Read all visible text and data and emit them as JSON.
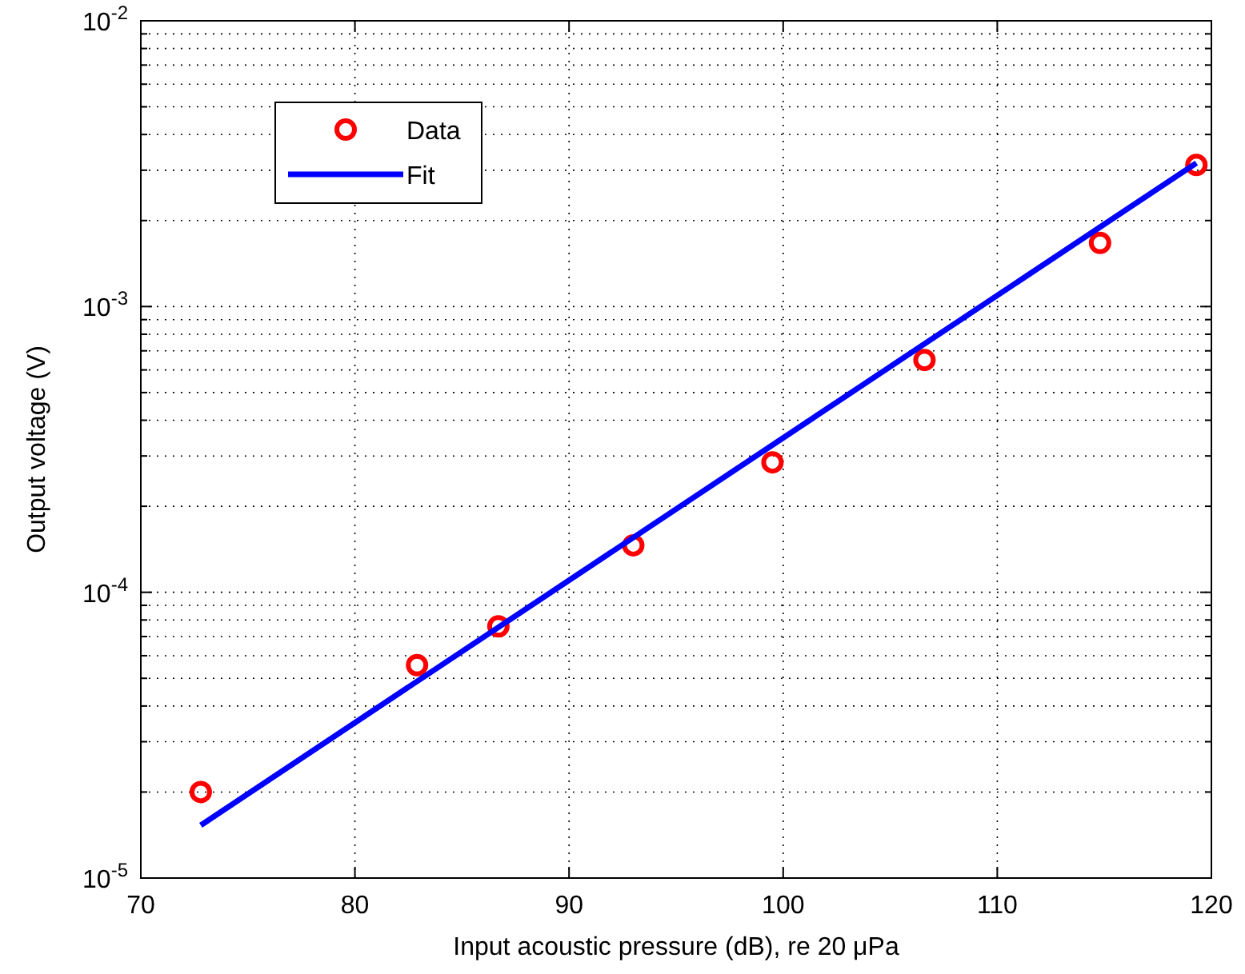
{
  "chart_data": {
    "type": "scatter",
    "xlabel": "Input acoustic pressure (dB), re 20 μPa",
    "ylabel": "Output voltage (V)",
    "xlim": [
      70,
      120
    ],
    "xticks": [
      70,
      80,
      90,
      100,
      110,
      120
    ],
    "ylim": [
      1e-05,
      0.01
    ],
    "yticks": [
      {
        "value": 1e-05,
        "label": "10$^{-5}$"
      },
      {
        "value": 0.0001,
        "label": "10$^{-4}$"
      },
      {
        "value": 0.001,
        "label": "10$^{-3}$"
      },
      {
        "value": 0.01,
        "label": "10$^{-2}$"
      }
    ],
    "log": "y",
    "grid": true,
    "legend": "top left",
    "series": [
      {
        "name": "Data",
        "marker": "circle",
        "color": "#ff0000",
        "x": [
          72.8,
          82.9,
          86.7,
          93.0,
          99.5,
          106.6,
          114.8,
          119.3
        ],
        "values": [
          2e-05,
          5.56e-05,
          7.6e-05,
          0.000146,
          0.000285,
          0.00065,
          0.00167,
          0.00313
        ]
      },
      {
        "name": "Fit",
        "type": "line",
        "marker": "none",
        "color": "#0000ff",
        "x": [
          72.8,
          119.3
        ],
        "values": [
          1.53e-05,
          0.00318
        ]
      }
    ]
  }
}
